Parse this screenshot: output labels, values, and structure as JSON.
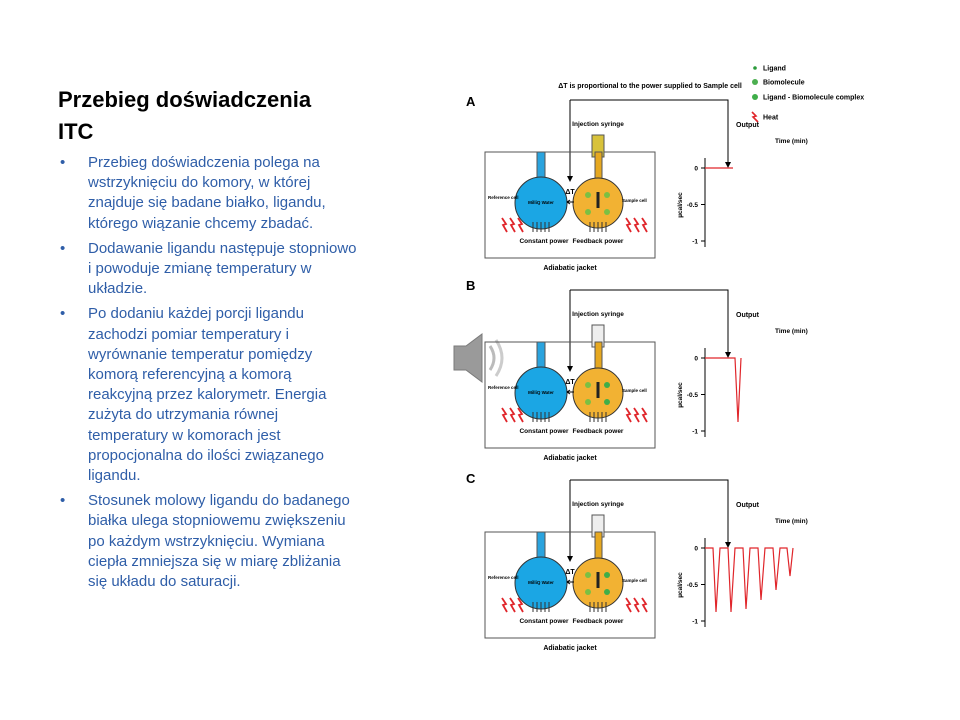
{
  "title": "Przebieg doświadczenia ITC",
  "bullets": [
    "Przebieg doświadczenia polega na wstrzyknięciu do komory, w której znajduje się badane białko, ligandu, którego wiązanie chcemy zbadać.",
    "Dodawanie ligandu następuje stopniowo i powoduje zmianę temperatury w układzie.",
    "Po dodaniu każdej porcji ligandu zachodzi pomiar temperatury i wyrównanie temperatur pomiędzy komorą referencyjną a komorą reakcyjną przez kalorymetr. Energia zużyta do utrzymania równej temperatury w komorach jest propocjonalna do ilości związanego ligandu.",
    "Stosunek molowy ligandu do badanego białka ulega stopniowemu zwiększeniu po każdym wstrzyknięciu. Wymiana ciepła zmniejsza się w miarę zbliżania się układu do saturacji."
  ],
  "figure": {
    "note": "ΔT is proportional to the power supplied to Sample cell",
    "legend": [
      "Ligand",
      "Biomolecule",
      "Ligand - Biomolecule complex",
      "Heat"
    ],
    "panels": [
      {
        "label": "A",
        "syringe": "Injection syringe",
        "reference_cell": "Reference cell",
        "water": "MilliQ Water",
        "sample_cell": "Sample cell",
        "delta": "ΔT",
        "constant": "Constant power",
        "feedback": "Feedback power",
        "jacket": "Adiabatic jacket",
        "output": "Output",
        "time": "Time (min)",
        "y_label": "µcal/sec",
        "yticks": [
          0,
          -0.5,
          -1
        ]
      },
      {
        "label": "B",
        "syringe": "Injection syringe",
        "reference_cell": "Reference cell",
        "water": "MilliQ Water",
        "sample_cell": "Sample cell",
        "delta": "ΔT",
        "constant": "Constant power",
        "feedback": "Feedback power",
        "jacket": "Adiabatic jacket",
        "output": "Output",
        "time": "Time (min)",
        "y_label": "µcal/sec",
        "yticks": [
          0,
          -0.5,
          -1
        ]
      },
      {
        "label": "C",
        "syringe": "Injection syringe",
        "reference_cell": "Reference cell",
        "water": "MilliQ Water",
        "sample_cell": "Sample cell",
        "delta": "ΔT",
        "constant": "Constant power",
        "feedback": "Feedback power",
        "jacket": "Adiabatic jacket",
        "output": "Output",
        "time": "Time (min)",
        "y_label": "µcal/sec",
        "yticks": [
          0,
          -0.5,
          -1
        ]
      }
    ]
  }
}
